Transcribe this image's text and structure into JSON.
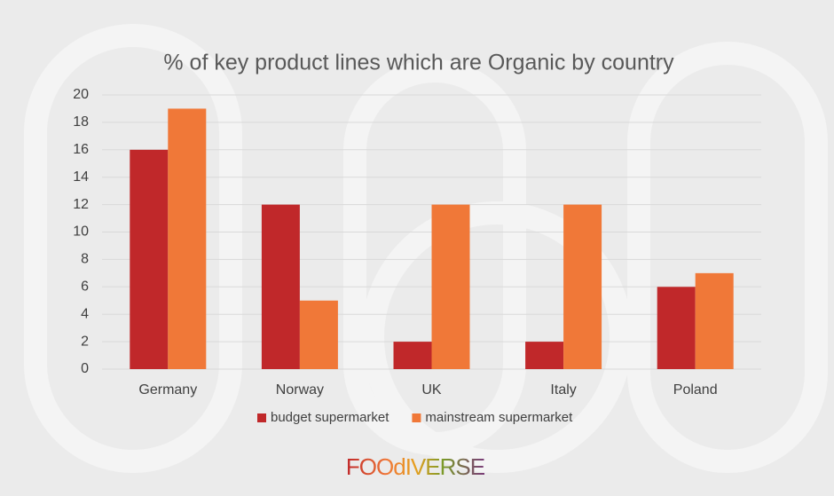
{
  "chart_data": {
    "type": "bar",
    "title": "% of key product lines which are Organic by country",
    "categories": [
      "Germany",
      "Norway",
      "UK",
      "Italy",
      "Poland"
    ],
    "series": [
      {
        "name": "budget supermarket",
        "color": "#c0282a",
        "values": [
          16,
          12,
          2,
          2,
          6
        ]
      },
      {
        "name": "mainstream supermarket",
        "color": "#f07838",
        "values": [
          19,
          5,
          12,
          12,
          7
        ]
      }
    ],
    "ylim": [
      0,
      20
    ],
    "yticks": [
      0,
      2,
      4,
      6,
      8,
      10,
      12,
      14,
      16,
      18,
      20
    ],
    "grid": true,
    "legend": "bottom"
  },
  "logo": "FOOdIVERSE"
}
